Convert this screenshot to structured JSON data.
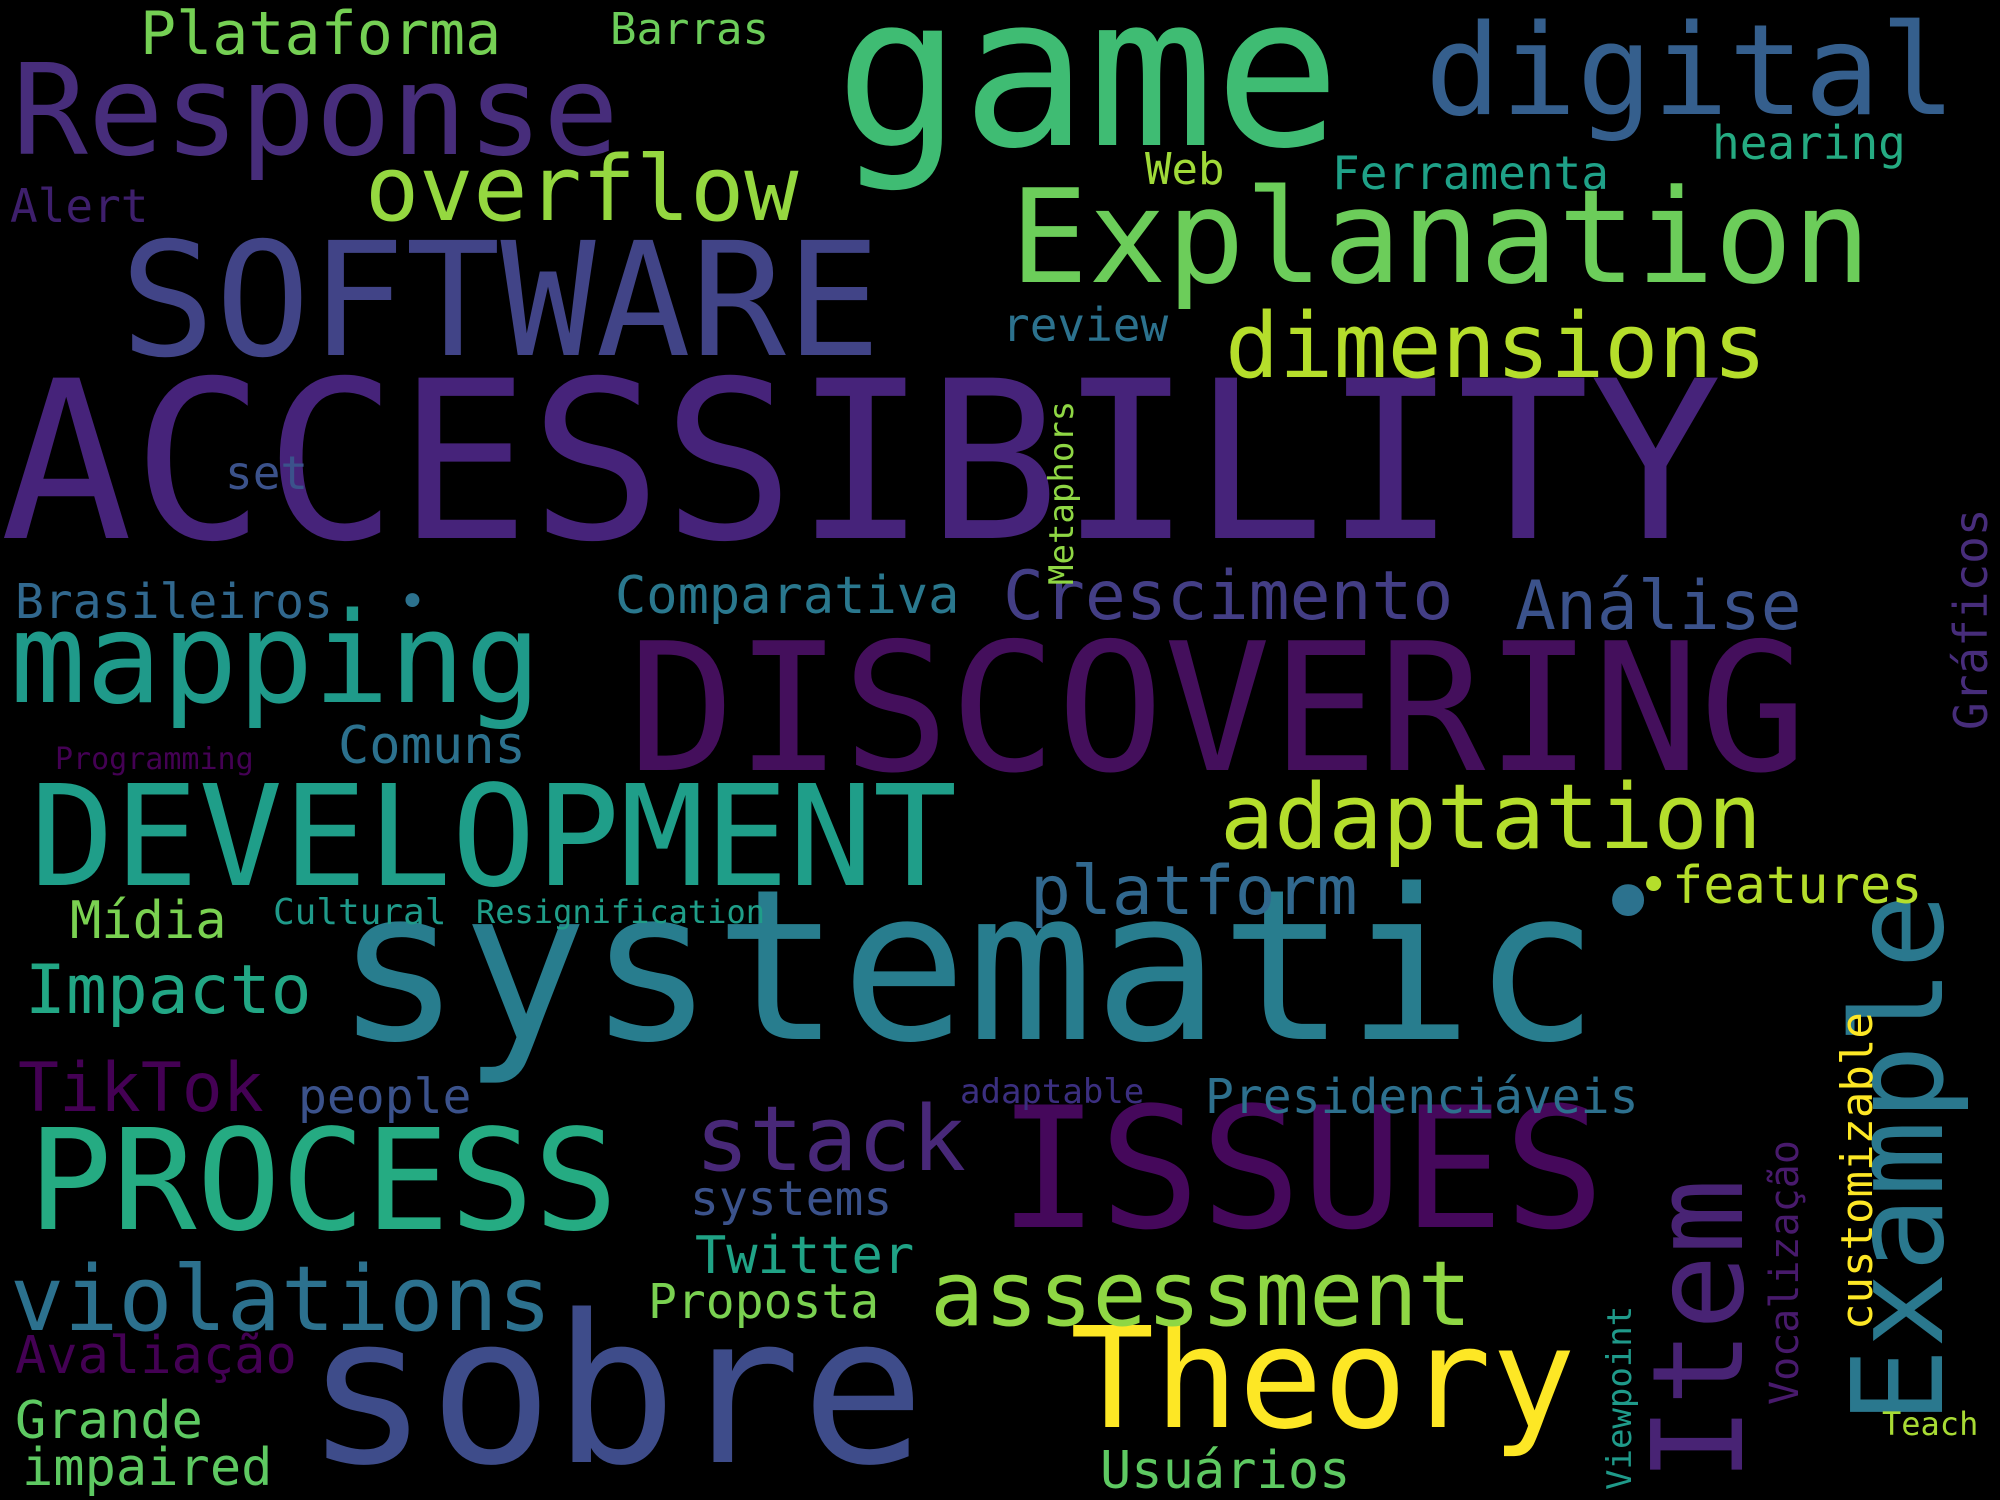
{
  "background": "#000000",
  "colormap": "viridis",
  "words": {
    "accessibility": {
      "text": "ACCESSIBILITY",
      "color": "#46237a"
    },
    "game": {
      "text": "game",
      "color": "#3fbc73"
    },
    "systematic": {
      "text": "systematic",
      "color": "#287d8e"
    },
    "discovering": {
      "text": "DISCOVERING",
      "color": "#440f5c"
    },
    "sobre": {
      "text": "sobre",
      "color": "#3e4c8a"
    },
    "software": {
      "text": "SOFTWARE",
      "color": "#414487"
    },
    "development": {
      "text": "DEVELOPMENT",
      "color": "#1f9e89"
    },
    "issues": {
      "text": "ISSUES",
      "color": "#45085b"
    },
    "process": {
      "text": "PROCESS",
      "color": "#25ab82"
    },
    "explanation": {
      "text": "Explanation",
      "color": "#6ccd5a"
    },
    "response": {
      "text": "Response",
      "color": "#472d7b"
    },
    "digital": {
      "text": "digital",
      "color": "#355f8d"
    },
    "mapping": {
      "text": "mapping",
      "color": "#1f9a8a"
    },
    "theory": {
      "text": "Theory",
      "color": "#fde725"
    },
    "example": {
      "text": "Example",
      "color": "#2a788e"
    },
    "item": {
      "text": "Item",
      "color": "#482374"
    },
    "dimensions": {
      "text": "dimensions",
      "color": "#b5de2b"
    },
    "adaptation": {
      "text": "adaptation",
      "color": "#b4de2c"
    },
    "assessment": {
      "text": "assessment",
      "color": "#8fd744"
    },
    "violations": {
      "text": "violations",
      "color": "#2c718e"
    },
    "overflow": {
      "text": "overflow",
      "color": "#95d840"
    },
    "stack": {
      "text": "stack",
      "color": "#482878"
    },
    "platform": {
      "text": "platform",
      "color": "#31688e"
    },
    "plataforma": {
      "text": "Plataforma",
      "color": "#75d054"
    },
    "crescimento": {
      "text": "Crescimento",
      "color": "#433e85"
    },
    "analise": {
      "text": "Análise",
      "color": "#3b528b"
    },
    "impacto": {
      "text": "Impacto",
      "color": "#22a785"
    },
    "tiktok": {
      "text": "TikTok",
      "color": "#440154"
    },
    "comparativa": {
      "text": "Comparativa",
      "color": "#2a788e"
    },
    "brasileiros": {
      "text": "Brasileiros",
      "color": "#31688e"
    },
    "presidenciaveis": {
      "text": "Presidenciáveis",
      "color": "#2d708e"
    },
    "twitter": {
      "text": "Twitter",
      "color": "#20a386"
    },
    "systems": {
      "text": "systems",
      "color": "#3b528b"
    },
    "proposta": {
      "text": "Proposta",
      "color": "#7ad151"
    },
    "avaliacao": {
      "text": "Avaliação",
      "color": "#440154"
    },
    "grande": {
      "text": "Grande",
      "color": "#5ec962"
    },
    "impaired": {
      "text": "impaired",
      "color": "#5ec962"
    },
    "usuarios": {
      "text": "Usuários",
      "color": "#5ec962"
    },
    "midia": {
      "text": "Mídia",
      "color": "#7ad151"
    },
    "comuns": {
      "text": "Comuns",
      "color": "#2c718e"
    },
    "features": {
      "text": "features",
      "color": "#b5de2b"
    },
    "people": {
      "text": "people",
      "color": "#3b528b"
    },
    "customizable": {
      "text": "customizable",
      "color": "#fde725"
    },
    "vocalizacao": {
      "text": "Vocalização",
      "color": "#481a6c"
    },
    "viewpoint": {
      "text": "Viewpoint",
      "color": "#1f9a8a"
    },
    "graficos": {
      "text": "Gráficos",
      "color": "#472d7b"
    },
    "metaphors": {
      "text": "Metaphors",
      "color": "#8fd744"
    },
    "barras": {
      "text": "Barras",
      "color": "#6ccd5a"
    },
    "ferramenta": {
      "text": "Ferramenta",
      "color": "#1fa188"
    },
    "hearing": {
      "text": "hearing",
      "color": "#25ab82"
    },
    "web": {
      "text": "Web",
      "color": "#a0da39"
    },
    "alert": {
      "text": "Alert",
      "color": "#3e1f6c"
    },
    "review": {
      "text": "review",
      "color": "#2c728e"
    },
    "set": {
      "text": "set",
      "color": "#3b528b"
    },
    "cultural": {
      "text": "Cultural",
      "color": "#1f9a8a"
    },
    "resignification": {
      "text": "Resignification",
      "color": "#1f9e89"
    },
    "programming": {
      "text": "Programming",
      "color": "#440154"
    },
    "adaptable": {
      "text": "adaptable",
      "color": "#3b2f80"
    },
    "teach": {
      "text": "Teach",
      "color": "#a8db34"
    },
    "dot1": {
      "text": "•",
      "color": "#2c728e"
    },
    "dot2": {
      "text": "•",
      "color": "#2c728e"
    },
    "dot3": {
      "text": "•",
      "color": "#b5de2b"
    }
  }
}
